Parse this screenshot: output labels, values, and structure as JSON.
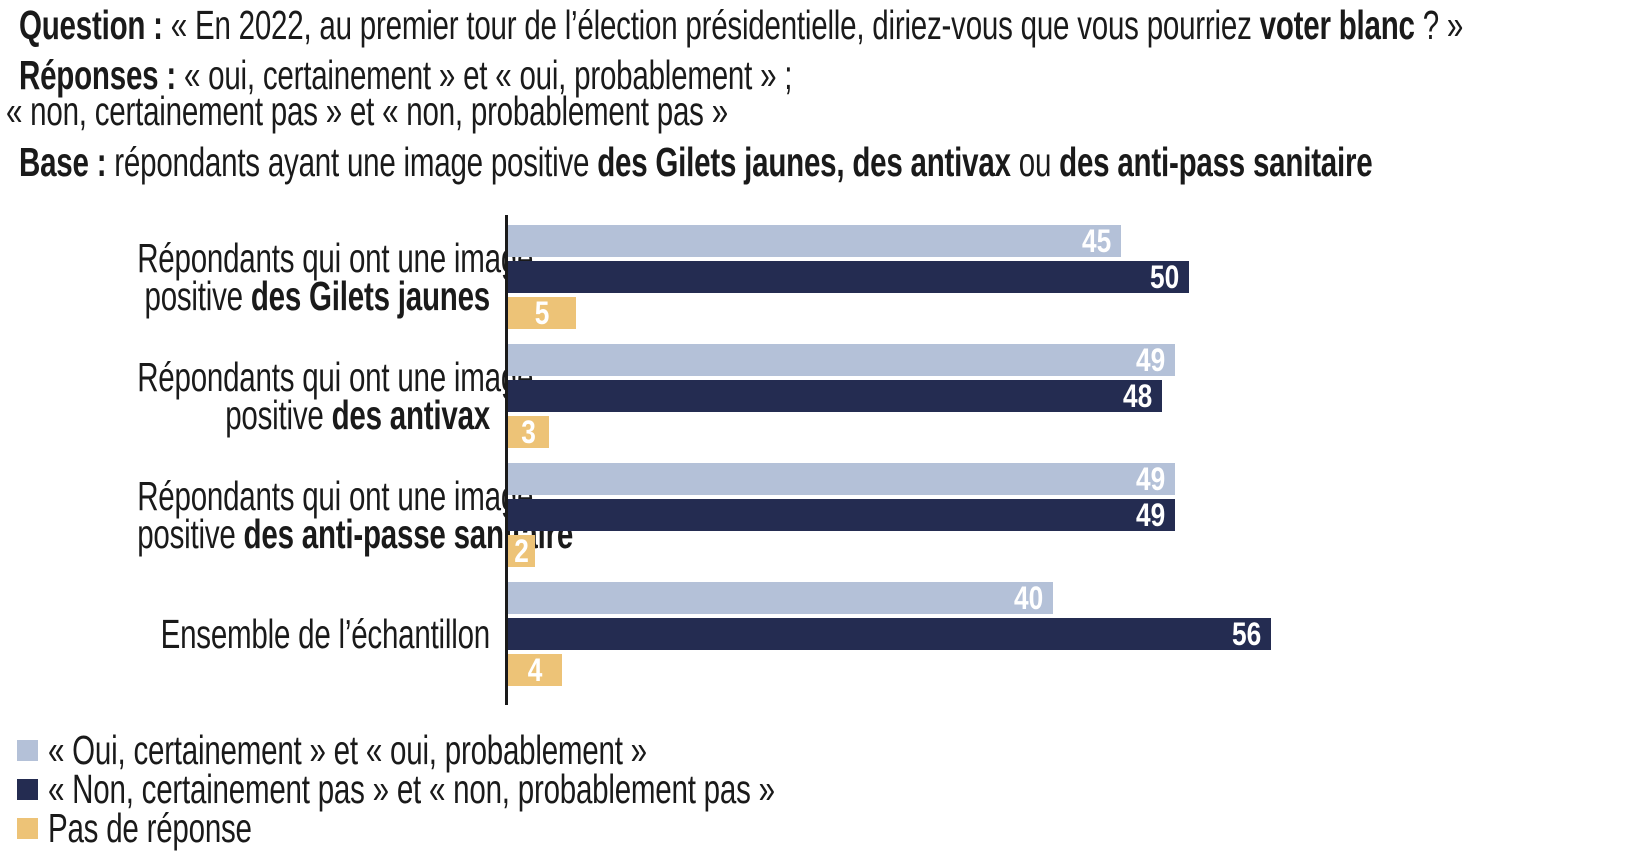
{
  "header": {
    "question": {
      "segments": [
        {
          "text": "Question : ",
          "bold": true
        },
        {
          "text": "« En 2022, au premier tour de l’élection présidentielle, diriez-vous que vous pourriez ",
          "bold": false
        },
        {
          "text": "voter blanc",
          "bold": true
        },
        {
          "text": " ? »",
          "bold": false
        }
      ]
    },
    "responses_line1": {
      "segments": [
        {
          "text": "Réponses :",
          "bold": true
        },
        {
          "text": "  « oui, certainement » et « oui, probablement » ;",
          "bold": false
        }
      ]
    },
    "responses_line2": {
      "segments": [
        {
          "text": "« non, certainement pas » et « non, probablement pas »",
          "bold": false
        }
      ]
    },
    "base": {
      "segments": [
        {
          "text": "Base : ",
          "bold": true
        },
        {
          "text": "répondants ayant une image positive ",
          "bold": false
        },
        {
          "text": "des Gilets jaunes, des antivax",
          "bold": true
        },
        {
          "text": " ou ",
          "bold": false
        },
        {
          "text": "des anti-pass sanitaire",
          "bold": true
        }
      ]
    }
  },
  "chart_data": {
    "type": "bar",
    "orientation": "horizontal",
    "value_unit": "percent",
    "xlim": [
      0,
      60
    ],
    "grid": false,
    "value_labels": "inside-end, white bold",
    "legend_position": "bottom-left",
    "categories": [
      {
        "lines": [
          {
            "segments": [
              {
                "text": "Répondants qui ont une image",
                "bold": false
              }
            ]
          },
          {
            "segments": [
              {
                "text": "positive ",
                "bold": false
              },
              {
                "text": "des Gilets jaunes",
                "bold": true
              }
            ]
          }
        ]
      },
      {
        "lines": [
          {
            "segments": [
              {
                "text": "Répondants qui ont une image",
                "bold": false
              }
            ]
          },
          {
            "segments": [
              {
                "text": "positive ",
                "bold": false
              },
              {
                "text": "des antivax",
                "bold": true
              }
            ]
          }
        ]
      },
      {
        "lines": [
          {
            "segments": [
              {
                "text": "Répondants qui ont une image",
                "bold": false
              }
            ]
          },
          {
            "segments": [
              {
                "text": "positive ",
                "bold": false
              },
              {
                "text": "des anti-passe sanitaire",
                "bold": true
              }
            ]
          }
        ]
      },
      {
        "lines": [
          {
            "segments": [
              {
                "text": "Ensemble de l’échantillon",
                "bold": false
              }
            ]
          }
        ]
      }
    ],
    "series": [
      {
        "key": "oui",
        "name": "« Oui, certainement » et « oui, probablement »",
        "color": "#b4c1d8",
        "values": [
          45,
          49,
          49,
          40
        ]
      },
      {
        "key": "non",
        "name": "« Non, certainement pas » et « non, probablement pas »",
        "color": "#242c51",
        "values": [
          50,
          48,
          49,
          56
        ]
      },
      {
        "key": "pas-de-reponse",
        "name": "Pas de réponse",
        "color": "#edc377",
        "values": [
          5,
          3,
          2,
          4
        ]
      }
    ]
  },
  "legend": {
    "items": [
      {
        "key": "oui",
        "label": "« Oui, certainement » et « oui, probablement »",
        "color": "#b4c1d8"
      },
      {
        "key": "non",
        "label": "« Non, certainement pas » et « non, probablement pas »",
        "color": "#242c51"
      },
      {
        "key": "pas-de-reponse",
        "label": "Pas de réponse",
        "color": "#edc377"
      }
    ]
  },
  "colors": {
    "text": "#1a1a1a",
    "axis": "#1a1a1a",
    "value_label": "#ffffff",
    "series_oui": "#b4c1d8",
    "series_non": "#242c51",
    "series_no_answer": "#edc377"
  }
}
